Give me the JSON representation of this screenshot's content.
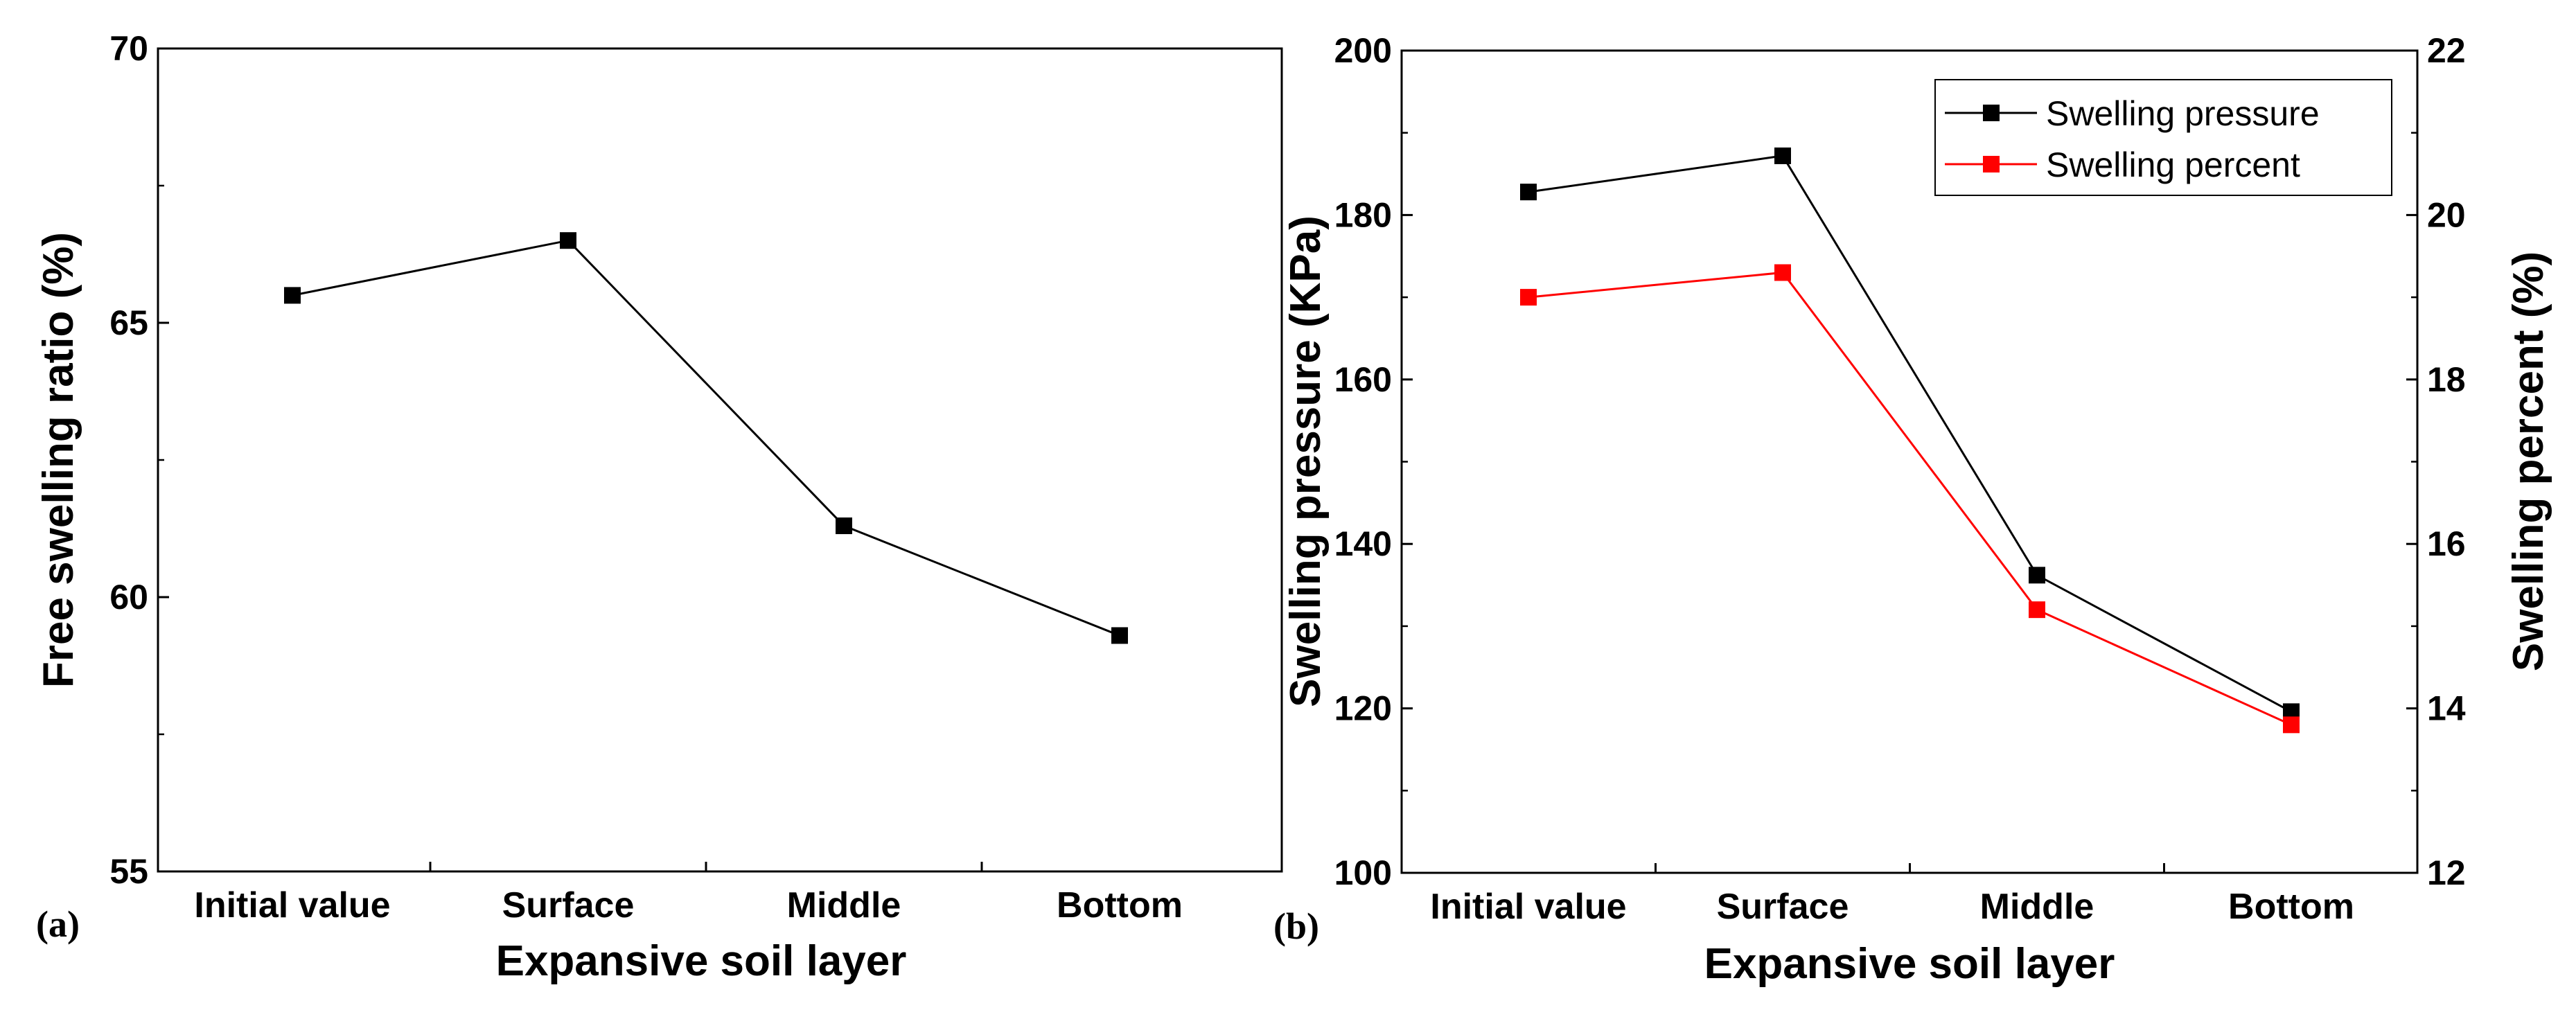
{
  "chart_data": [
    {
      "type": "line",
      "panel_label": "(a)",
      "categories": [
        "Initial value",
        "Surface",
        "Middle",
        "Bottom"
      ],
      "series": [
        {
          "name": "Free swelling ratio",
          "color": "#000000",
          "values": [
            65.5,
            66.5,
            61.3,
            59.3
          ]
        }
      ],
      "xlabel": "Expansive soil layer",
      "ylabel": "Free swelling ratio (%)",
      "ylim": [
        55,
        70
      ],
      "yticks": [
        55,
        60,
        65,
        70
      ],
      "yticks_minor": [
        57.5,
        62.5,
        67.5
      ],
      "legend": null
    },
    {
      "type": "line",
      "panel_label": "(b)",
      "categories": [
        "Initial value",
        "Surface",
        "Middle",
        "Bottom"
      ],
      "series": [
        {
          "name": "Swelling pressure",
          "axis": "left",
          "color": "#000000",
          "values": [
            182.8,
            187.2,
            136.2,
            119.6
          ]
        },
        {
          "name": "Swelling percent",
          "axis": "right",
          "color": "#ff0000",
          "values": [
            19.0,
            19.3,
            15.2,
            13.8
          ]
        }
      ],
      "xlabel": "Expansive soil layer",
      "ylabel": "Swelling pressure (KPa)",
      "ylabel_right": "Swelling percent (%)",
      "ylim": [
        100,
        200
      ],
      "yticks": [
        100,
        120,
        140,
        160,
        180,
        200
      ],
      "yticks_minor": [
        110,
        130,
        150,
        170,
        190
      ],
      "ylim_right": [
        12,
        22
      ],
      "yticks_right": [
        12,
        14,
        16,
        18,
        20,
        22
      ],
      "yticks_right_minor": [
        13,
        15,
        17,
        19,
        21
      ],
      "legend": "top-right"
    }
  ]
}
